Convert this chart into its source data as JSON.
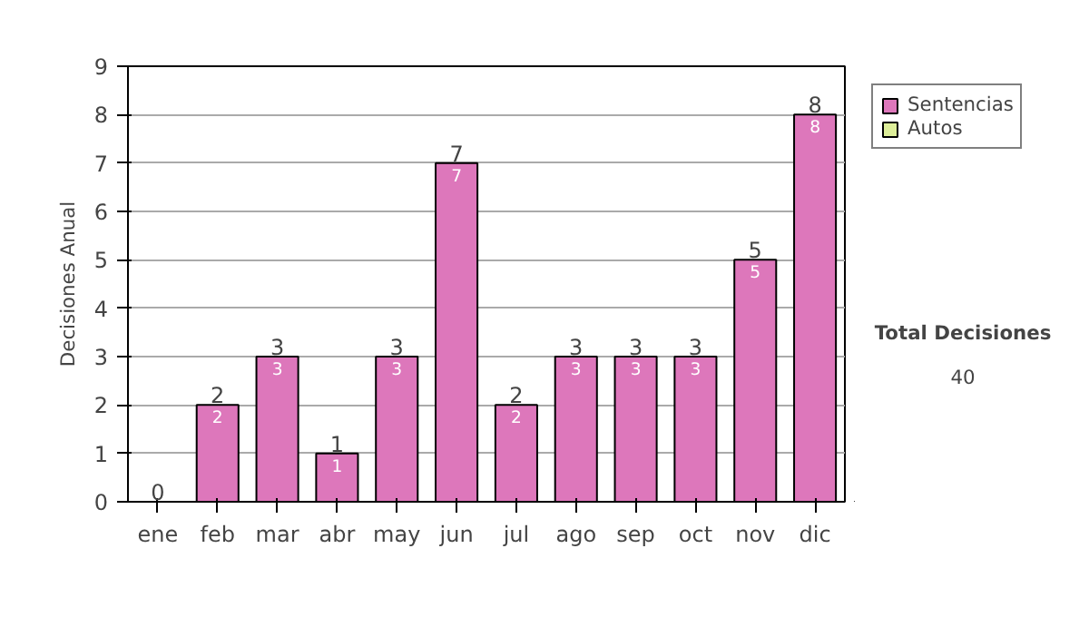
{
  "chart_data": {
    "type": "bar",
    "stacked": true,
    "ylabel": "Decisiones Anual",
    "categories": [
      "ene",
      "feb",
      "mar",
      "abr",
      "may",
      "jun",
      "jul",
      "ago",
      "sep",
      "oct",
      "nov",
      "dic"
    ],
    "series": [
      {
        "name": "Sentencias",
        "color": "#dd77bb",
        "values": [
          0,
          2,
          3,
          1,
          3,
          7,
          2,
          3,
          3,
          3,
          5,
          8
        ],
        "value_labels": [
          null,
          "2",
          "3",
          "1",
          "3",
          "7",
          "2",
          "3",
          "3",
          "3",
          "5",
          "8"
        ]
      },
      {
        "name": "Autos",
        "color": "#ddee99",
        "values": [
          0,
          0,
          0,
          0,
          0,
          0,
          0,
          0,
          0,
          0,
          0,
          0
        ]
      }
    ],
    "totals": [
      "0",
      "2",
      "3",
      "1",
      "3",
      "7",
      "2",
      "3",
      "3",
      "3",
      "5",
      "8"
    ],
    "ylim": [
      0,
      9
    ],
    "yticks": [
      0,
      1,
      2,
      3,
      4,
      5,
      6,
      7,
      8,
      9
    ],
    "grid": "y",
    "legend": "right",
    "annotations": [
      "Total Decisiones",
      "40"
    ]
  }
}
